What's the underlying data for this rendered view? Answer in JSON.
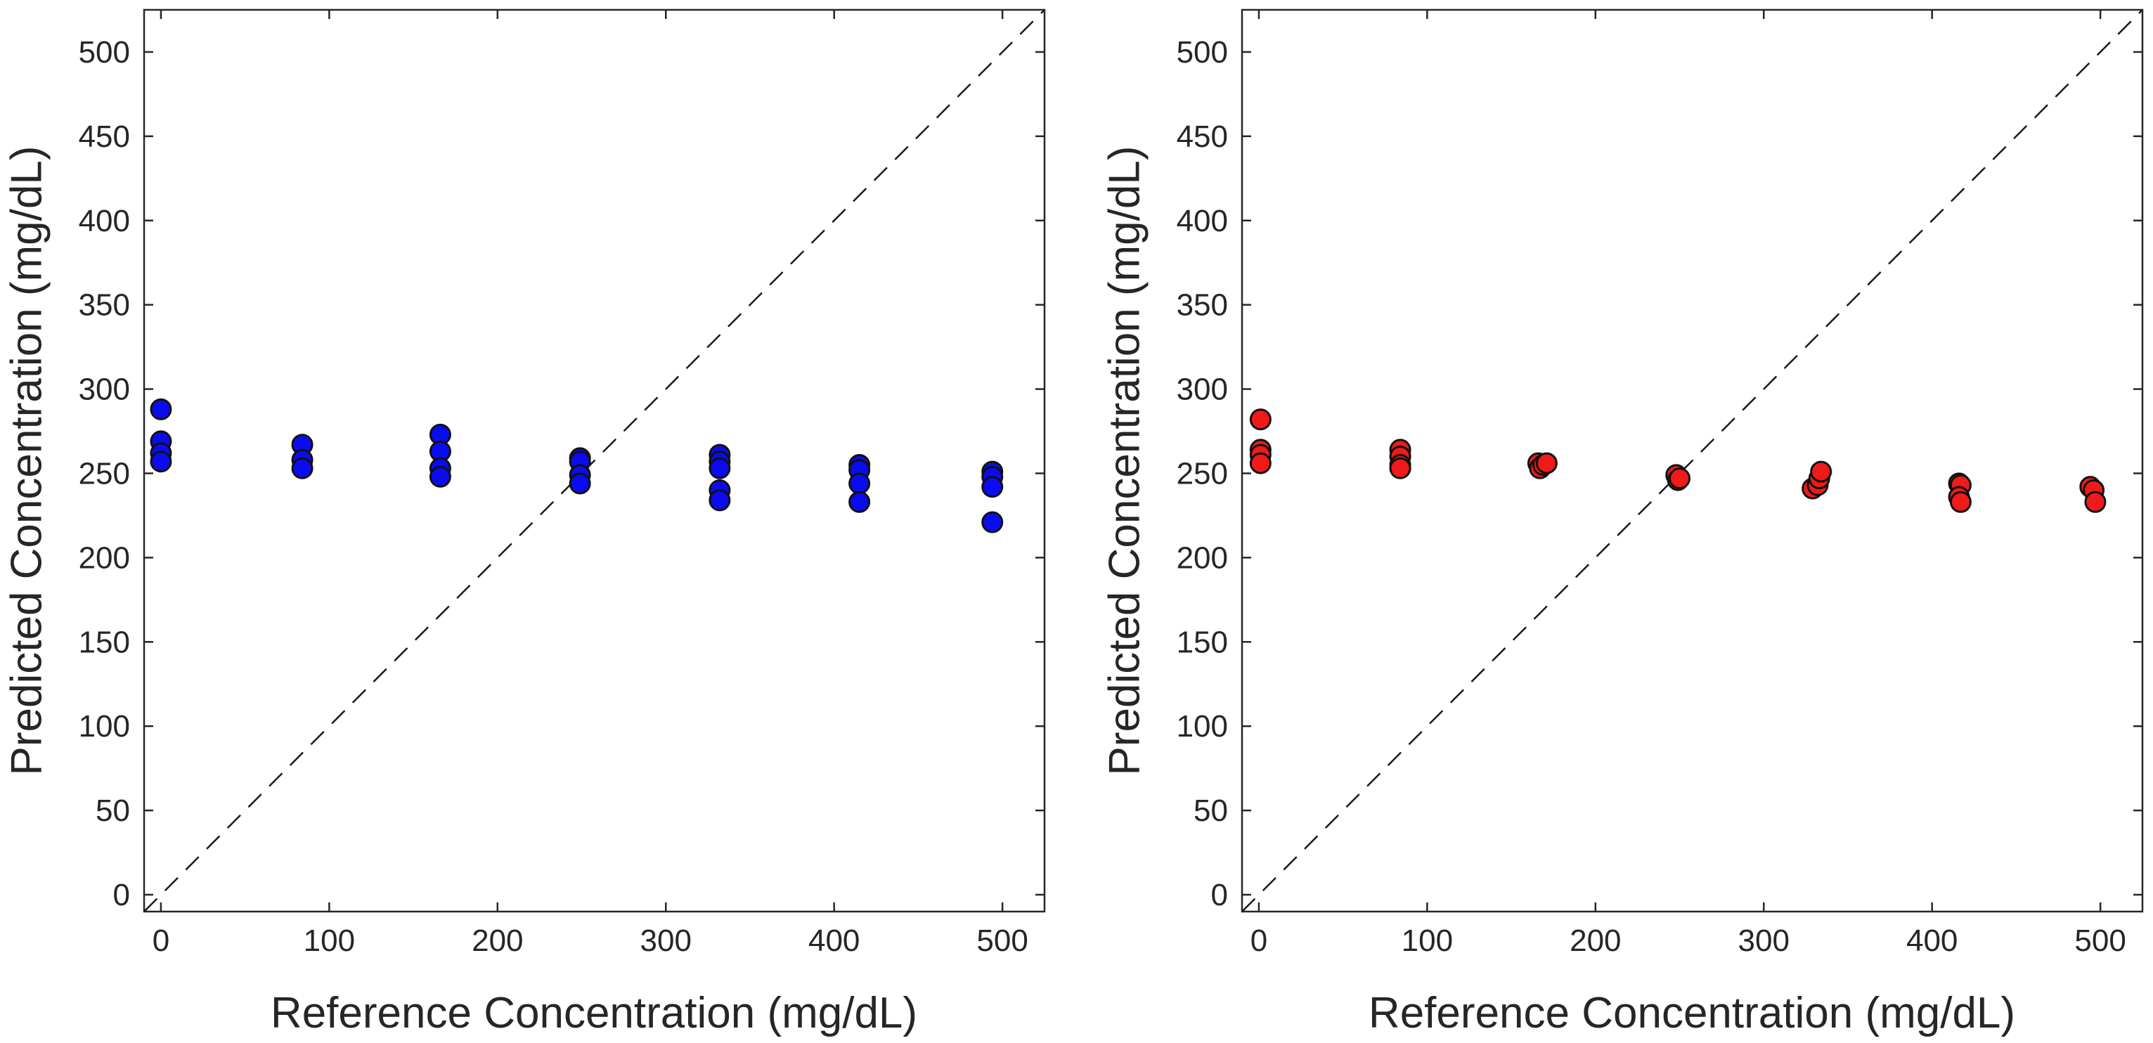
{
  "chart_data": [
    {
      "type": "scatter",
      "title": "",
      "xlabel": "Reference Concentration (mg/dL)",
      "ylabel": "Predicted Concentration (mg/dL)",
      "xlim": [
        -10,
        525
      ],
      "ylim": [
        -10,
        525
      ],
      "xticks": [
        0,
        100,
        200,
        300,
        400,
        500
      ],
      "yticks": [
        0,
        50,
        100,
        150,
        200,
        250,
        300,
        350,
        400,
        450,
        500
      ],
      "reference_line": "y = x (dashed)",
      "series": [
        {
          "name": "blue",
          "color": "#0b0bf2",
          "points": [
            [
              0,
              288
            ],
            [
              0,
              269
            ],
            [
              0,
              262
            ],
            [
              0,
              257
            ],
            [
              84,
              267
            ],
            [
              84,
              258
            ],
            [
              84,
              253
            ],
            [
              166,
              273
            ],
            [
              166,
              263
            ],
            [
              166,
              253
            ],
            [
              166,
              248
            ],
            [
              249,
              259
            ],
            [
              249,
              257
            ],
            [
              249,
              249
            ],
            [
              249,
              244
            ],
            [
              332,
              261
            ],
            [
              332,
              257
            ],
            [
              332,
              253
            ],
            [
              332,
              240
            ],
            [
              332,
              234
            ],
            [
              415,
              255
            ],
            [
              415,
              252
            ],
            [
              415,
              244
            ],
            [
              415,
              233
            ],
            [
              494,
              251
            ],
            [
              494,
              248
            ],
            [
              494,
              242
            ],
            [
              494,
              221
            ]
          ]
        }
      ]
    },
    {
      "type": "scatter",
      "title": "",
      "xlabel": "Reference Concentration (mg/dL)",
      "ylabel": "Predicted Concentration (mg/dL)",
      "xlim": [
        -10,
        525
      ],
      "ylim": [
        -10,
        525
      ],
      "xticks": [
        0,
        100,
        200,
        300,
        400,
        500
      ],
      "yticks": [
        0,
        50,
        100,
        150,
        200,
        250,
        300,
        350,
        400,
        450,
        500
      ],
      "reference_line": "y = x (dashed)",
      "series": [
        {
          "name": "red",
          "color": "#f01a1a",
          "points": [
            [
              1,
              282
            ],
            [
              1,
              264
            ],
            [
              1,
              261
            ],
            [
              1,
              256
            ],
            [
              84,
              264
            ],
            [
              84,
              260
            ],
            [
              84,
              255
            ],
            [
              84,
              253
            ],
            [
              166,
              256
            ],
            [
              167,
              253
            ],
            [
              169,
              255
            ],
            [
              171,
              256
            ],
            [
              248,
              249
            ],
            [
              249,
              246
            ],
            [
              250,
              247
            ],
            [
              329,
              241
            ],
            [
              332,
              243
            ],
            [
              333,
              247
            ],
            [
              334,
              251
            ],
            [
              416,
              244
            ],
            [
              417,
              243
            ],
            [
              416,
              236
            ],
            [
              417,
              233
            ],
            [
              494,
              242
            ],
            [
              496,
              240
            ],
            [
              497,
              233
            ]
          ]
        }
      ]
    }
  ]
}
